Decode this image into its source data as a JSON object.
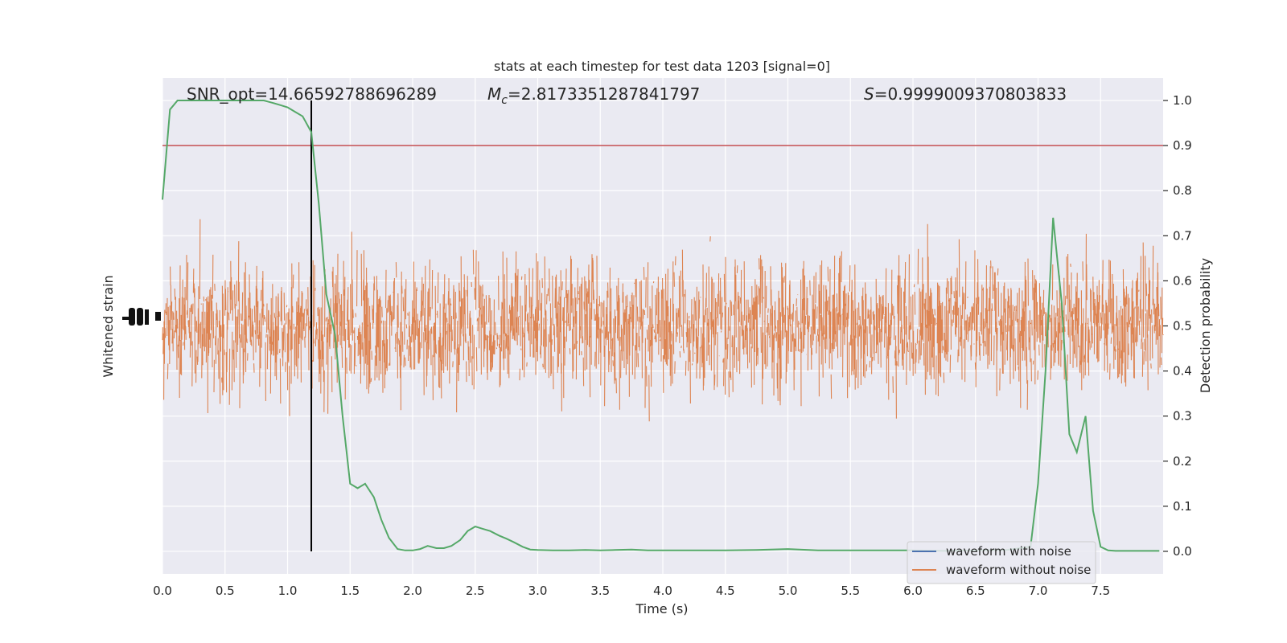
{
  "chart_data": {
    "type": "line",
    "title": "stats at each timestep for test data 1203 [signal=0]",
    "xlabel": "Time (s)",
    "ylabel_left": "Whitened strain",
    "ylabel_right": "Detection probability",
    "xlim": [
      0.0,
      8.0
    ],
    "ylim_right": [
      -0.05,
      1.05
    ],
    "x_ticks": [
      "0.0",
      "0.5",
      "1.0",
      "1.5",
      "2.0",
      "2.5",
      "3.0",
      "3.5",
      "4.0",
      "4.5",
      "5.0",
      "5.5",
      "6.0",
      "6.5",
      "7.0",
      "7.5"
    ],
    "y_ticks_right": [
      "0.0",
      "0.1",
      "0.2",
      "0.3",
      "0.4",
      "0.5",
      "0.6",
      "0.7",
      "0.8",
      "0.9",
      "1.0"
    ],
    "grid": true,
    "legend_position": "bottom-right",
    "annotations": {
      "snr": "SNR_opt=14.66592788696289",
      "mc_symbol": "M",
      "mc_sub": "c",
      "mc_value": "=2.8173351287841797",
      "s_symbol": "S",
      "s_value": "=0.9999009370803833"
    },
    "threshold": 0.9,
    "marker_time": 1.19,
    "series": [
      {
        "name": "waveform with noise",
        "color": "#4c72b0",
        "values": []
      },
      {
        "name": "waveform without noise",
        "color": "#dd8452",
        "values": []
      },
      {
        "color": "#55a868",
        "x": [
          0.0,
          0.06,
          0.12,
          0.19,
          0.25,
          0.32,
          0.38,
          0.44,
          0.5,
          0.56,
          0.62,
          0.69,
          0.75,
          0.81,
          0.88,
          0.94,
          1.0,
          1.06,
          1.12,
          1.19,
          1.25,
          1.31,
          1.38,
          1.44,
          1.5,
          1.56,
          1.62,
          1.69,
          1.75,
          1.81,
          1.88,
          1.94,
          2.0,
          2.06,
          2.12,
          2.19,
          2.25,
          2.31,
          2.38,
          2.44,
          2.5,
          2.56,
          2.62,
          2.69,
          2.75,
          2.81,
          2.88,
          2.94,
          3.0,
          3.12,
          3.25,
          3.38,
          3.5,
          3.62,
          3.75,
          3.88,
          4.0,
          4.25,
          4.5,
          4.75,
          5.0,
          5.25,
          5.5,
          5.75,
          6.0,
          6.25,
          6.5,
          6.75,
          6.94,
          7.0,
          7.06,
          7.12,
          7.19,
          7.25,
          7.31,
          7.38,
          7.44,
          7.5,
          7.56,
          7.62,
          7.75,
          7.88,
          7.97
        ],
        "values": [
          0.78,
          0.98,
          1.0,
          1.0,
          1.0,
          1.0,
          1.0,
          1.0,
          1.0,
          1.0,
          1.0,
          1.0,
          1.0,
          1.0,
          0.995,
          0.99,
          0.985,
          0.975,
          0.965,
          0.93,
          0.77,
          0.57,
          0.48,
          0.3,
          0.15,
          0.14,
          0.15,
          0.12,
          0.07,
          0.03,
          0.005,
          0.002,
          0.002,
          0.005,
          0.012,
          0.007,
          0.007,
          0.012,
          0.025,
          0.045,
          0.055,
          0.05,
          0.045,
          0.035,
          0.028,
          0.02,
          0.01,
          0.004,
          0.003,
          0.002,
          0.002,
          0.003,
          0.002,
          0.003,
          0.004,
          0.002,
          0.002,
          0.002,
          0.002,
          0.003,
          0.005,
          0.002,
          0.002,
          0.002,
          0.002,
          0.001,
          0.002,
          0.003,
          0.01,
          0.15,
          0.4,
          0.74,
          0.55,
          0.26,
          0.22,
          0.3,
          0.09,
          0.01,
          0.002,
          0.001,
          0.001,
          0.001,
          0.001
        ]
      }
    ]
  }
}
